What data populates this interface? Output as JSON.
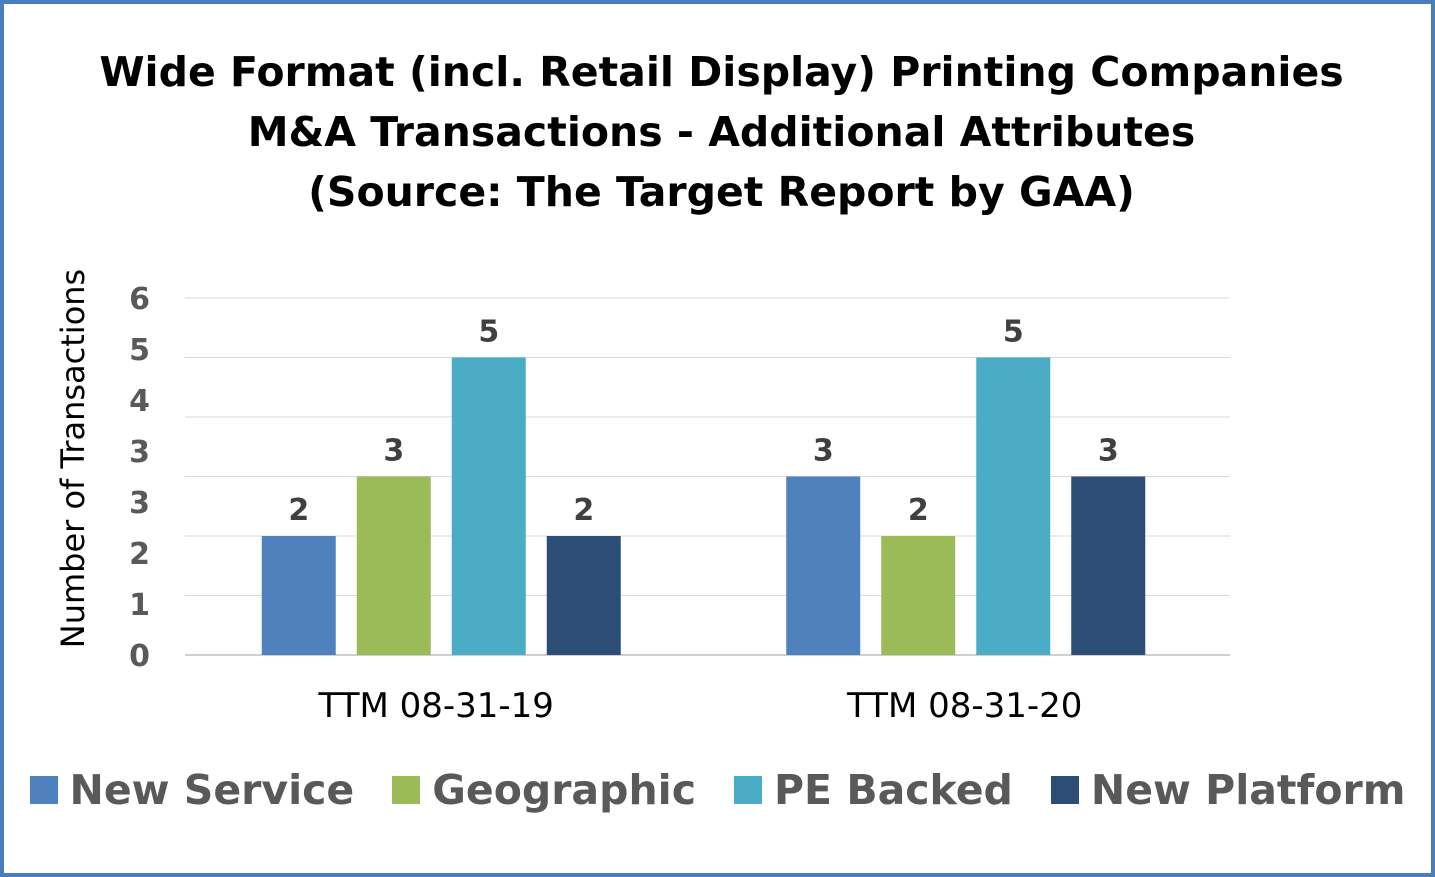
{
  "chart_data": {
    "type": "bar",
    "title_lines": [
      "Wide Format (incl. Retail Display) Printing Companies",
      "M&A Transactions - Additional Attributes",
      "(Source: The Target Report by GAA)"
    ],
    "ylabel": "Number of Transactions",
    "xlabel": "",
    "categories": [
      "TTM 08-31-19",
      "TTM 08-31-20"
    ],
    "yticks": [
      "0",
      "1",
      "2",
      "3",
      "3",
      "4",
      "5",
      "6"
    ],
    "ylim": [
      0,
      6
    ],
    "gridlines": true,
    "legend_position": "bottom",
    "series": [
      {
        "name": "New Service",
        "values": [
          2,
          3
        ],
        "color": "#4f81bd"
      },
      {
        "name": "Geographic",
        "values": [
          3,
          2
        ],
        "color": "#9bbb59"
      },
      {
        "name": "PE Backed",
        "values": [
          5,
          5
        ],
        "color": "#4bacc6"
      },
      {
        "name": "New Platform",
        "values": [
          2,
          3
        ],
        "color": "#2c4d75"
      }
    ]
  }
}
